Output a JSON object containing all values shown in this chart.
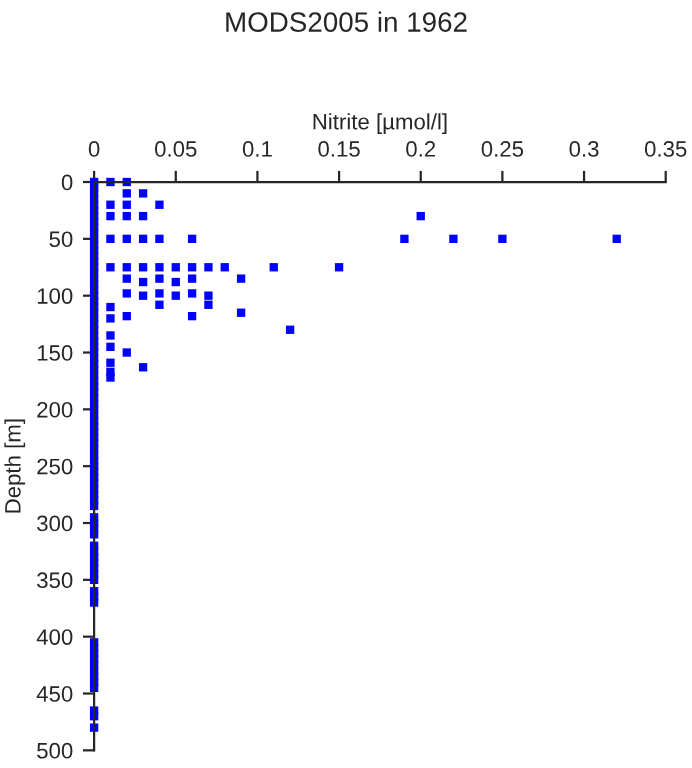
{
  "chart_data": {
    "type": "scatter",
    "title": "MODS2005 in 1962",
    "xlabel": "Nitrite [µmol/l]",
    "ylabel": "Depth [m]",
    "xlim": [
      0,
      0.35
    ],
    "xticks": [
      0,
      0.05,
      0.1,
      0.15,
      0.2,
      0.25,
      0.3,
      0.35
    ],
    "ylim": [
      500,
      0
    ],
    "yticks": [
      0,
      50,
      100,
      150,
      200,
      250,
      300,
      350,
      400,
      450,
      500
    ],
    "grid": false,
    "marker": "square",
    "series": [
      {
        "color": "#0000ff",
        "x": [
          0,
          0,
          0,
          0,
          0,
          0,
          0,
          0,
          0,
          0,
          0,
          0,
          0,
          0,
          0,
          0,
          0,
          0,
          0,
          0,
          0,
          0,
          0,
          0,
          0,
          0,
          0,
          0,
          0,
          0,
          0,
          0,
          0,
          0,
          0,
          0,
          0,
          0,
          0,
          0,
          0,
          0,
          0,
          0,
          0,
          0,
          0,
          0,
          0,
          0,
          0,
          0,
          0,
          0,
          0,
          0,
          0,
          0,
          0,
          0,
          0,
          0,
          0,
          0,
          0,
          0,
          0,
          0,
          0,
          0,
          0,
          0,
          0,
          0,
          0,
          0,
          0,
          0,
          0,
          0,
          0,
          0,
          0,
          0,
          0.01,
          0.02,
          0.02,
          0.03,
          0.01,
          0.02,
          0.04,
          0.01,
          0.02,
          0.03,
          0.2,
          0.01,
          0.02,
          0.03,
          0.04,
          0.06,
          0.19,
          0.22,
          0.25,
          0.32,
          0.01,
          0.02,
          0.03,
          0.04,
          0.05,
          0.06,
          0.07,
          0.08,
          0.11,
          0.15,
          0.02,
          0.04,
          0.06,
          0.09,
          0.03,
          0.05,
          0.02,
          0.04,
          0.06,
          0.03,
          0.05,
          0.07,
          0.04,
          0.07,
          0.09,
          0.02,
          0.06,
          0.12,
          0.02,
          0.03,
          0.01,
          0.01,
          0.01,
          0.01,
          0.01,
          0.01,
          0.01
        ],
        "values": [
          0,
          5,
          10,
          15,
          20,
          25,
          30,
          35,
          40,
          45,
          50,
          55,
          60,
          65,
          70,
          75,
          80,
          85,
          90,
          95,
          100,
          105,
          110,
          115,
          120,
          125,
          130,
          135,
          140,
          145,
          150,
          155,
          160,
          165,
          170,
          175,
          180,
          185,
          190,
          195,
          200,
          205,
          210,
          215,
          220,
          225,
          230,
          235,
          240,
          245,
          250,
          255,
          260,
          265,
          270,
          275,
          280,
          285,
          295,
          300,
          305,
          310,
          320,
          325,
          330,
          335,
          340,
          345,
          350,
          360,
          365,
          370,
          405,
          410,
          415,
          420,
          425,
          430,
          435,
          440,
          445,
          465,
          470,
          480,
          0,
          0,
          10,
          10,
          20,
          20,
          20,
          30,
          30,
          30,
          30,
          50,
          50,
          50,
          50,
          50,
          50,
          50,
          50,
          50,
          75,
          75,
          75,
          75,
          75,
          75,
          75,
          75,
          75,
          75,
          85,
          85,
          85,
          85,
          88,
          88,
          98,
          98,
          98,
          100,
          100,
          100,
          108,
          108,
          115,
          118,
          118,
          130,
          150,
          163,
          110,
          120,
          135,
          145,
          159,
          167,
          172
        ]
      }
    ]
  }
}
